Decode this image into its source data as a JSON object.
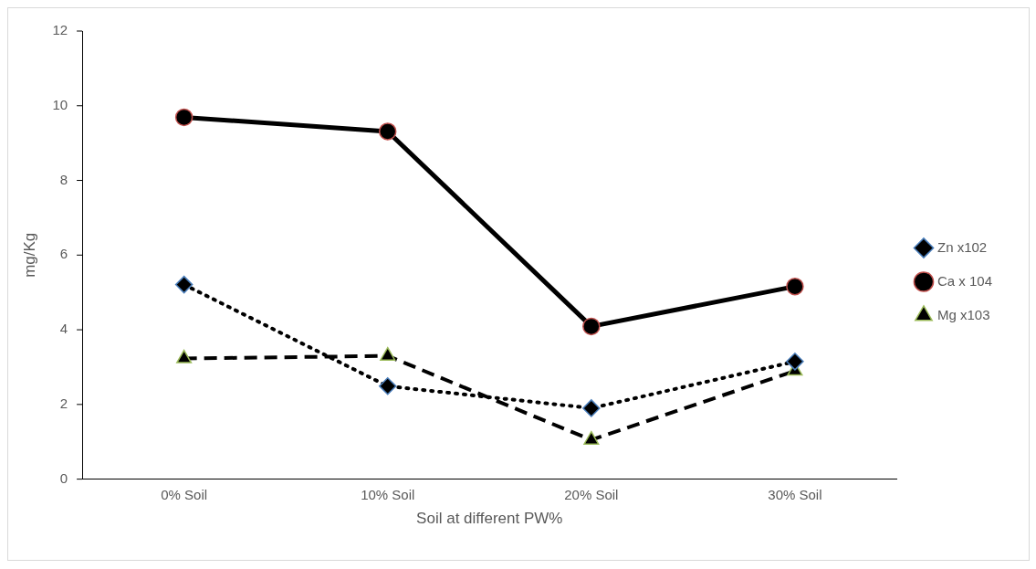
{
  "chart_data": {
    "type": "line",
    "xlabel": "Soil at different PW%",
    "ylabel": "mg/Kg",
    "categories": [
      "0% Soil",
      "10% Soil",
      "20% Soil",
      "30% Soil"
    ],
    "ylim": [
      0,
      12
    ],
    "yticks": [
      0,
      2,
      4,
      6,
      8,
      10,
      12
    ],
    "grid": false,
    "legend": "right",
    "series": [
      {
        "name": "Zn x102",
        "color": "#000000",
        "marker": "diamond",
        "line_style": "dotted",
        "values": [
          5.21,
          2.49,
          1.9,
          3.15
        ]
      },
      {
        "name": "Ca x 104",
        "color": "#000000",
        "marker": "circle",
        "line_style": "solid",
        "values": [
          9.69,
          9.31,
          4.09,
          5.16
        ]
      },
      {
        "name": "Mg x103",
        "color": "#000000",
        "marker": "triangle",
        "line_style": "dashed",
        "values": [
          3.23,
          3.3,
          1.05,
          2.9
        ]
      }
    ]
  }
}
